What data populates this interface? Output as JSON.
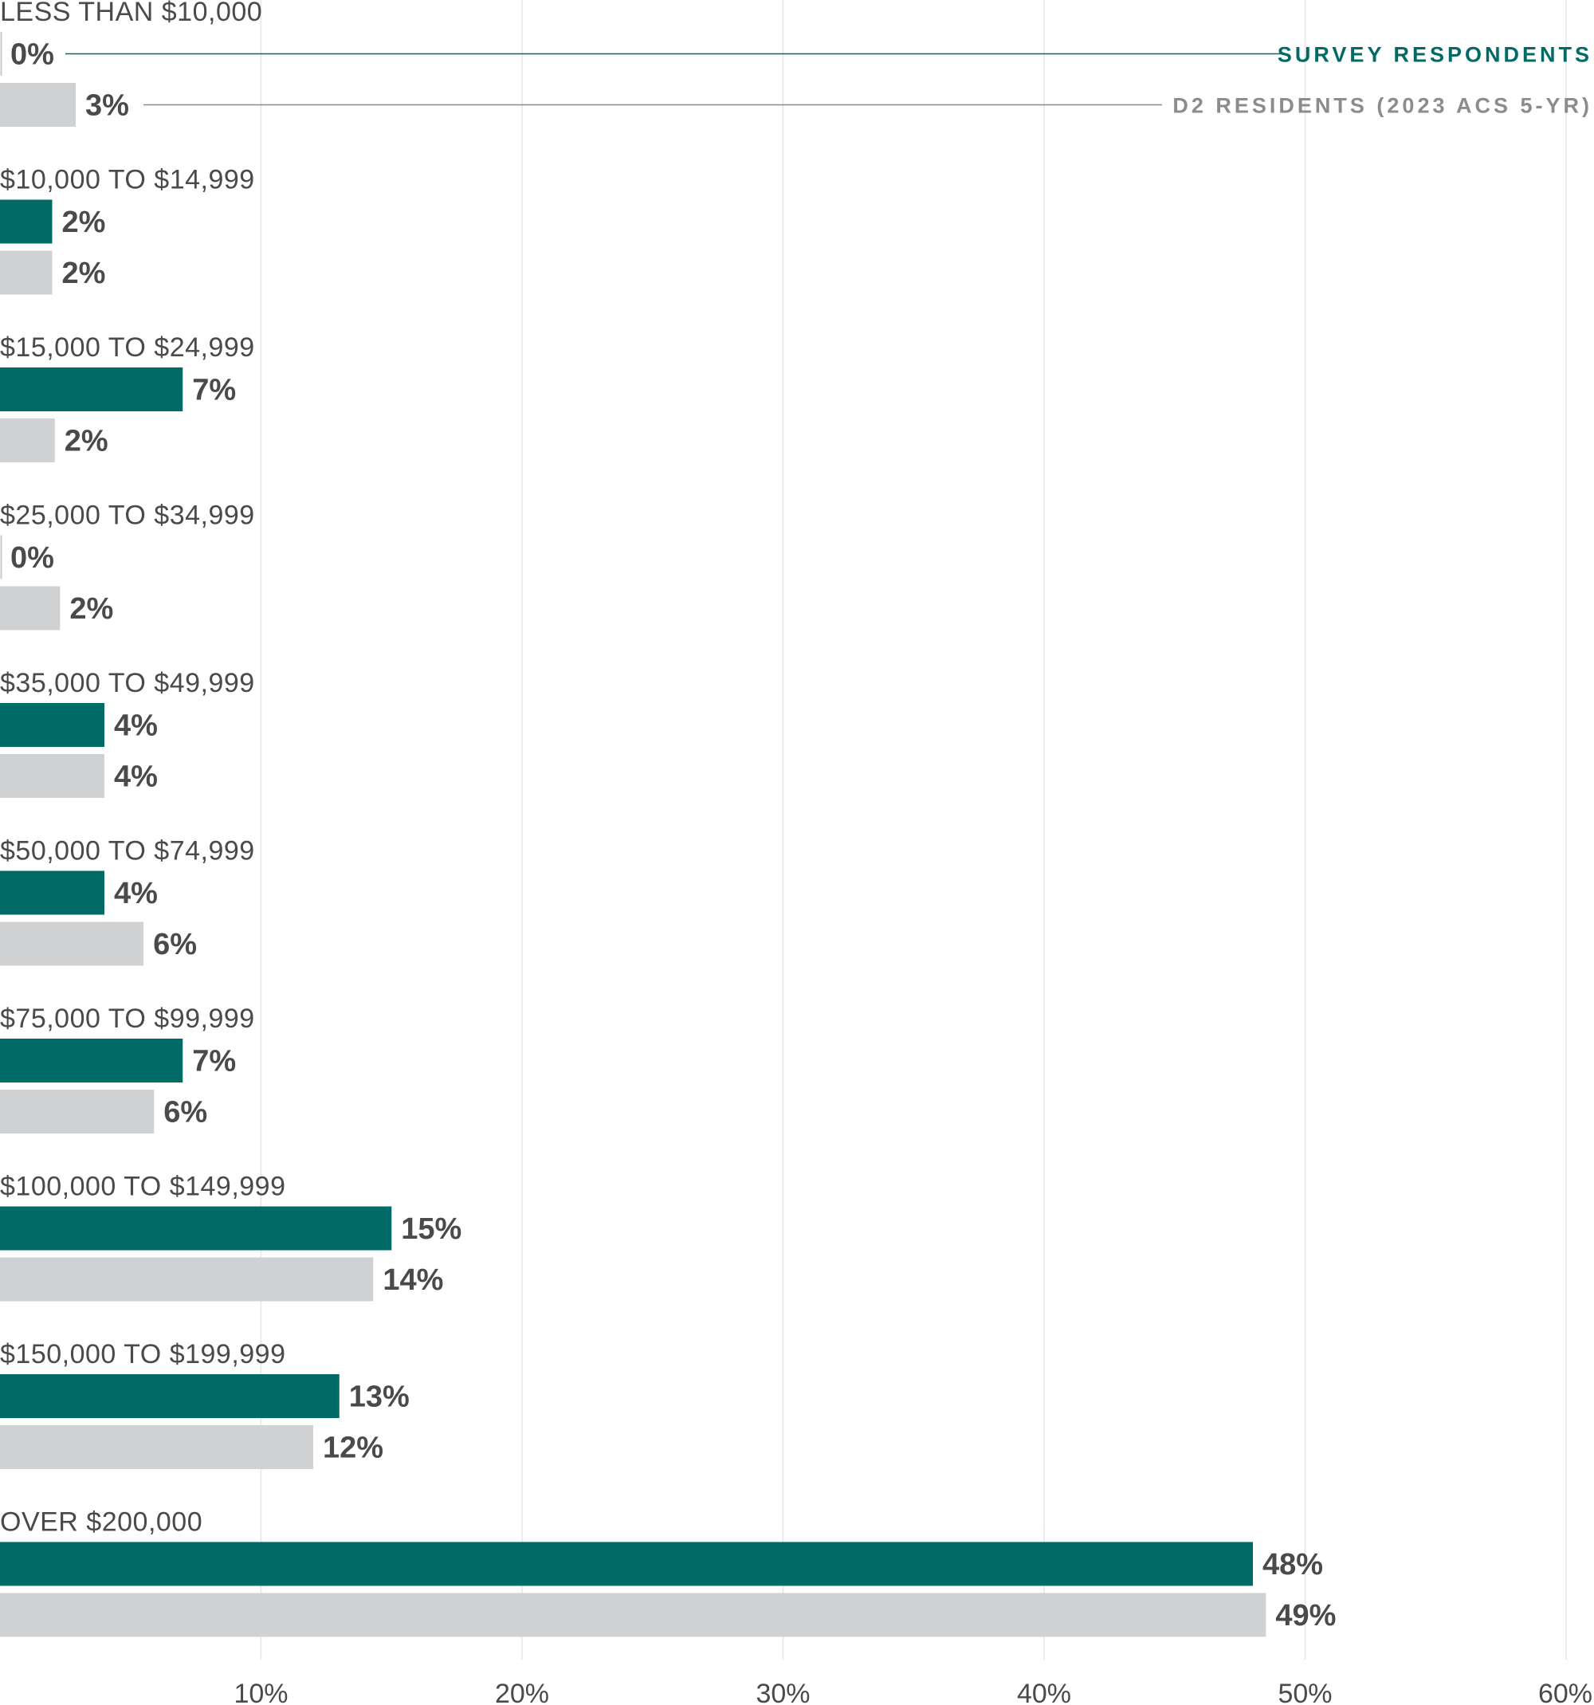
{
  "chart_data": {
    "type": "bar",
    "orientation": "horizontal",
    "title": "",
    "xlabel": "",
    "ylabel": "",
    "xlim": [
      0,
      60
    ],
    "x_ticks": [
      10,
      20,
      30,
      40,
      50,
      60
    ],
    "tick_labels": [
      "10%",
      "20%",
      "30%",
      "40%",
      "50%",
      "60%"
    ],
    "grid": true,
    "legend_position": "top-right",
    "categories": [
      "LESS THAN $10,000",
      "$10,000 TO $14,999",
      "$15,000 TO $24,999",
      "$25,000 TO $34,999",
      "$35,000 TO $49,999",
      "$50,000 TO $74,999",
      "$75,000 TO $99,999",
      "$100,000 TO $149,999",
      "$150,000 TO $199,999",
      "OVER $200,000"
    ],
    "series": [
      {
        "name": "SURVEY RESPONDENTS",
        "color": "#006b66",
        "values": [
          0,
          2,
          7,
          0,
          4,
          4,
          7,
          15,
          13,
          48
        ],
        "labels": [
          "0%",
          "2%",
          "7%",
          "0%",
          "4%",
          "4%",
          "7%",
          "15%",
          "13%",
          "48%"
        ]
      },
      {
        "name": "D2 RESIDENTS (2023 ACS 5-YR)",
        "color": "#d0d1d3",
        "values": [
          2.9,
          2,
          2.1,
          2.3,
          4,
          5.5,
          5.9,
          14.3,
          12,
          48.5
        ],
        "labels": [
          "3%",
          "2%",
          "2%",
          "2%",
          "4%",
          "6%",
          "6%",
          "14%",
          "12%",
          "49%"
        ]
      }
    ],
    "legend_colors": [
      "#006b66",
      "#8c8c8c"
    ]
  }
}
